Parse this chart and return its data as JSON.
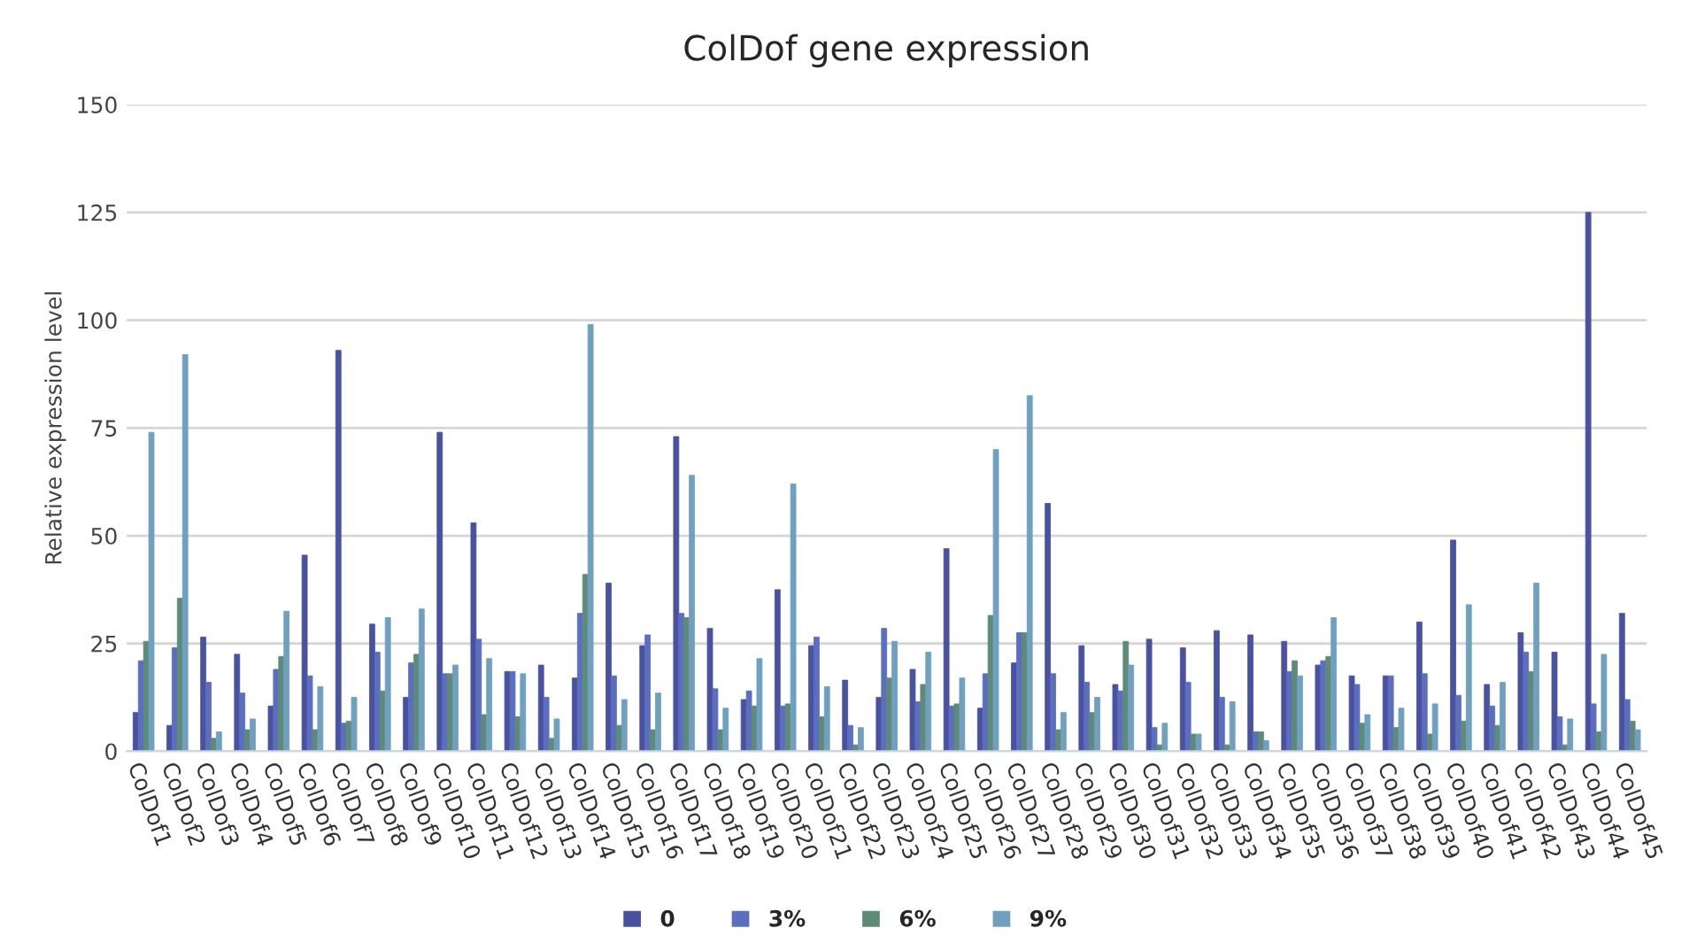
{
  "chart_data": {
    "type": "bar",
    "title": "ColDof gene expression",
    "ylabel": "Relative expression level",
    "categories": [
      "ColDof1",
      "ColDof2",
      "ColDof3",
      "ColDof4",
      "ColDof5",
      "ColDof6",
      "ColDof7",
      "ColDof8",
      "ColDof9",
      "ColDof10",
      "ColDof11",
      "ColDof12",
      "ColDof13",
      "ColDof14",
      "ColDof15",
      "ColDof16",
      "ColDof17",
      "ColDof18",
      "ColDof19",
      "ColDof20",
      "ColDof21",
      "ColDof22",
      "ColDof23",
      "ColDof24",
      "ColDof25",
      "ColDof26",
      "ColDof27",
      "ColDof28",
      "ColDof29",
      "ColDof30",
      "ColDof31",
      "ColDof32",
      "ColDof33",
      "ColDof34",
      "ColDof35",
      "ColDof36",
      "ColDof37",
      "ColDof38",
      "ColDof39",
      "ColDof40",
      "ColDof41",
      "ColDof42",
      "ColDof43",
      "ColDof44",
      "ColDof45"
    ],
    "series": [
      {
        "name": "0",
        "color": "#4a529f",
        "values": [
          9,
          6,
          26.5,
          22.5,
          10.5,
          45.5,
          93,
          29.5,
          12.5,
          74,
          53,
          18.5,
          20,
          17,
          39,
          24.5,
          73,
          28.5,
          12,
          37.5,
          24.5,
          16.5,
          12.5,
          19,
          47,
          10,
          20.5,
          57.5,
          24.5,
          15.5,
          26,
          24,
          28,
          27,
          25.5,
          20,
          17.5,
          17.5,
          30,
          49,
          15.5,
          27.5,
          23,
          125,
          32
        ]
      },
      {
        "name": "3%",
        "color": "#5b6ebf",
        "values": [
          21,
          24,
          16,
          13.5,
          19,
          17.5,
          6.5,
          23,
          20.5,
          18,
          26,
          18.5,
          12.5,
          32,
          17.5,
          27,
          32,
          14.5,
          14,
          10.5,
          26.5,
          6,
          28.5,
          11.5,
          10.5,
          18,
          27.5,
          18,
          16,
          14,
          5.5,
          16,
          12.5,
          4.5,
          18.5,
          21,
          15.5,
          17.5,
          18,
          13,
          10.5,
          23,
          8,
          11,
          12
        ]
      },
      {
        "name": "6%",
        "color": "#5e8a78",
        "values": [
          25.5,
          35.5,
          3,
          5,
          22,
          5,
          7,
          14,
          22.5,
          18,
          8.5,
          8,
          3,
          41,
          6,
          5,
          31,
          5,
          10.5,
          11,
          8,
          1.5,
          17,
          15.5,
          11,
          31.5,
          27.5,
          5,
          9,
          25.5,
          1.5,
          4,
          1.5,
          4.5,
          21,
          22,
          6.5,
          5.5,
          4,
          7,
          6,
          18.5,
          1.5,
          4.5,
          7
        ]
      },
      {
        "name": "9%",
        "color": "#6fa0bf",
        "values": [
          74,
          92,
          4.5,
          7.5,
          32.5,
          15,
          12.5,
          31,
          33,
          20,
          21.5,
          18,
          7.5,
          99,
          12,
          13.5,
          64,
          10,
          21.5,
          62,
          15,
          5.5,
          25.5,
          23,
          17,
          70,
          82.5,
          9,
          12.5,
          20,
          6.5,
          4,
          11.5,
          2.5,
          17.5,
          31,
          8.5,
          10,
          11,
          34,
          16,
          39,
          7.5,
          22.5,
          5
        ]
      }
    ],
    "ylim": [
      0,
      150
    ],
    "yticks": [
      0,
      25,
      50,
      75,
      100,
      125,
      150
    ],
    "grid": "y",
    "legend": "bottom"
  }
}
